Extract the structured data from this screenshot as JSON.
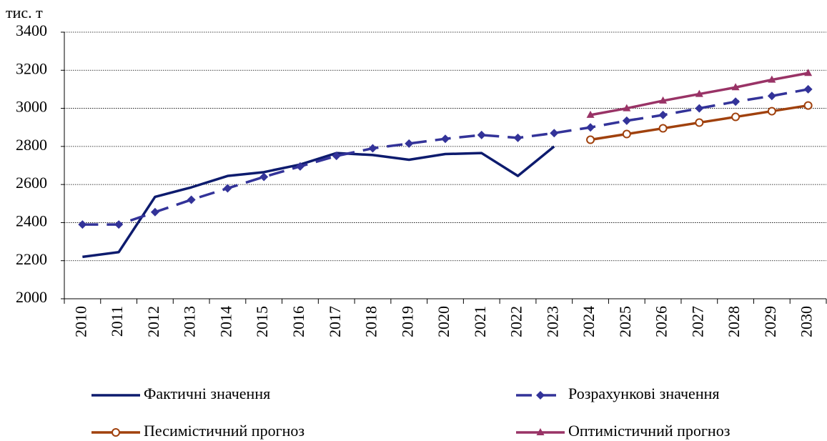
{
  "chart_data": {
    "type": "line",
    "y_unit": "тис. т",
    "categories": [
      "2010",
      "2011",
      "2012",
      "2013",
      "2014",
      "2015",
      "2016",
      "2017",
      "2018",
      "2019",
      "2020",
      "2021",
      "2022",
      "2023",
      "2024",
      "2025",
      "2026",
      "2027",
      "2028",
      "2029",
      "2030"
    ],
    "series": [
      {
        "name": "Фактичні значення",
        "color": "#0d1b6e",
        "line_style": "solid",
        "marker": "none",
        "values": [
          2220,
          2245,
          2535,
          2585,
          2645,
          2665,
          2705,
          2765,
          2755,
          2730,
          2760,
          2765,
          2645,
          2800,
          null,
          null,
          null,
          null,
          null,
          null,
          null
        ]
      },
      {
        "name": "Розрахункові значення",
        "color": "#333399",
        "line_style": "dashed",
        "marker": "diamond",
        "values": [
          2390,
          2390,
          2455,
          2520,
          2580,
          2640,
          2695,
          2750,
          2790,
          2815,
          2840,
          2860,
          2845,
          2870,
          2900,
          2935,
          2965,
          3000,
          3035,
          3065,
          3100
        ]
      },
      {
        "name": "Песимістичний прогноз",
        "color": "#a0410d",
        "line_style": "solid",
        "marker": "circle",
        "values": [
          null,
          null,
          null,
          null,
          null,
          null,
          null,
          null,
          null,
          null,
          null,
          null,
          null,
          null,
          2835,
          2865,
          2895,
          2925,
          2955,
          2985,
          3015
        ]
      },
      {
        "name": "Оптимістичний прогноз",
        "color": "#993366",
        "line_style": "solid",
        "marker": "triangle",
        "values": [
          null,
          null,
          null,
          null,
          null,
          null,
          null,
          null,
          null,
          null,
          null,
          null,
          null,
          null,
          2965,
          3000,
          3040,
          3075,
          3110,
          3150,
          3185
        ]
      }
    ],
    "ylim": [
      2000,
      3400
    ],
    "yticks": [
      2000,
      2200,
      2400,
      2600,
      2800,
      3000,
      3200,
      3400
    ],
    "grid": true,
    "legend": "bottom"
  }
}
